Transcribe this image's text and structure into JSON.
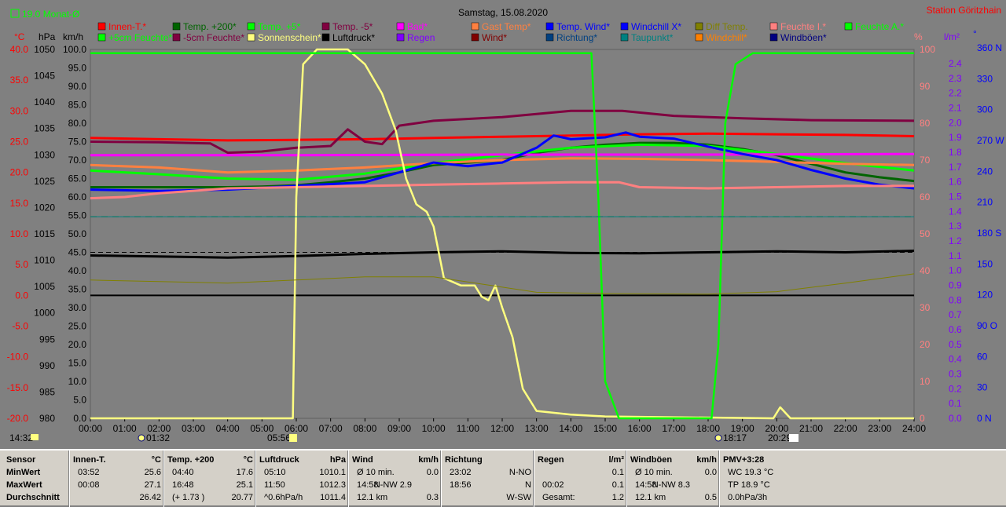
{
  "header": {
    "title": "Samstag, 15.08.2020",
    "station": "Station Göritzhain",
    "month_avg": "19.0 Monat-Ø"
  },
  "legend_rows": [
    [
      {
        "label": "Innen-T.*",
        "color": "#ff0000"
      },
      {
        "label": "Temp. +200*",
        "color": "#006400"
      },
      {
        "label": "Temp. +5*",
        "color": "#00ff00"
      },
      {
        "label": "Temp. -5*",
        "color": "#800040"
      },
      {
        "label": "Bad*",
        "color": "#ff00ff"
      },
      {
        "label": "Gast Temp*",
        "color": "#ff8040"
      },
      {
        "label": "Temp. Wind*",
        "color": "#0000ff"
      },
      {
        "label": "Windchill X*",
        "color": "#0000ff"
      },
      {
        "label": "Diff Temp.",
        "color": "#808000"
      },
      {
        "label": "Feuchte I.*",
        "color": "#ff8080"
      },
      {
        "label": "Feuchte A.*",
        "color": "#00ff00"
      }
    ],
    [
      {
        "label": "+5cm Feuchte*",
        "color": "#00ff00"
      },
      {
        "label": "-5cm Feuchte*",
        "color": "#800040"
      },
      {
        "label": "Sonnenschein*",
        "color": "#ffff80"
      },
      {
        "label": "Luftdruck*",
        "color": "#000000"
      },
      {
        "label": "Regen",
        "color": "#8000ff"
      },
      {
        "label": "Wind*",
        "color": "#800000"
      },
      {
        "label": "Richtung*",
        "color": "#004080"
      },
      {
        "label": "Taupunkt*",
        "color": "#008080"
      },
      {
        "label": "Windchill*",
        "color": "#ff8000"
      },
      {
        "label": "Windböen*",
        "color": "#000080"
      }
    ]
  ],
  "axis_units": {
    "temp": "°C",
    "pressure": "hPa",
    "wind": "km/h",
    "humidity": "%",
    "radiation": "l/m²",
    "direction": "°"
  },
  "axes": {
    "temp_ticks": [
      "40.0",
      "35.0",
      "30.0",
      "25.0",
      "20.0",
      "15.0",
      "10.0",
      "5.0",
      "0.0",
      "-5.0",
      "-10.0",
      "-15.0",
      "-20.0"
    ],
    "pressure_ticks": [
      "1050",
      "1045",
      "1040",
      "1035",
      "1030",
      "1025",
      "1020",
      "1015",
      "1010",
      "1005",
      "1000",
      "995",
      "990",
      "985",
      "980"
    ],
    "wind_ticks": [
      "100.0",
      "95.0",
      "90.0",
      "85.0",
      "80.0",
      "75.0",
      "70.0",
      "65.0",
      "60.0",
      "55.0",
      "50.0",
      "45.0",
      "40.0",
      "35.0",
      "30.0",
      "25.0",
      "20.0",
      "15.0",
      "10.0",
      "5.0",
      "0.0"
    ],
    "humidity_ticks": [
      "100",
      "90",
      "80",
      "70",
      "60",
      "50",
      "40",
      "30",
      "20",
      "10",
      "0"
    ],
    "rain_ticks": [
      "2.4",
      "2.3",
      "2.2",
      "2.1",
      "2.0",
      "1.9",
      "1.8",
      "1.7",
      "1.6",
      "1.5",
      "1.4",
      "1.3",
      "1.2",
      "1.1",
      "1.0",
      "0.9",
      "0.8",
      "0.7",
      "0.6",
      "0.5",
      "0.4",
      "0.3",
      "0.2",
      "0.1",
      "0.0"
    ],
    "dir_ticks": [
      "360 N",
      "330",
      "300",
      "270 W",
      "240",
      "210",
      "180 S",
      "150",
      "120",
      "90 O",
      "60",
      "30",
      "0 N"
    ],
    "time_ticks": [
      "00:00",
      "01:00",
      "02:00",
      "03:00",
      "04:00",
      "05:00",
      "06:00",
      "07:00",
      "08:00",
      "09:00",
      "10:00",
      "11:00",
      "12:00",
      "13:00",
      "14:00",
      "15:00",
      "16:00",
      "17:00",
      "18:00",
      "19:00",
      "20:00",
      "21:00",
      "22:00",
      "23:00",
      "24:00"
    ]
  },
  "markers": {
    "time_now": "14:32",
    "moonrise": "01:32",
    "sunrise": "05:56",
    "moonset": "18:17",
    "sunset": "20:29"
  },
  "chart_data": {
    "type": "line",
    "title": "Samstag, 15.08.2020",
    "x_unit": "hour",
    "xlim": [
      0,
      24
    ],
    "series": [
      {
        "name": "Innen-T.*",
        "axis": "temp",
        "color": "#ff0000",
        "points": [
          [
            0,
            25.6
          ],
          [
            2,
            25.4
          ],
          [
            4,
            25.2
          ],
          [
            6,
            25.3
          ],
          [
            8,
            25.4
          ],
          [
            10,
            25.6
          ],
          [
            12,
            25.8
          ],
          [
            14,
            26.0
          ],
          [
            16,
            26.2
          ],
          [
            18,
            26.3
          ],
          [
            20,
            26.2
          ],
          [
            22,
            26.1
          ],
          [
            24,
            25.9
          ]
        ]
      },
      {
        "name": "Temp. +200*",
        "axis": "temp",
        "color": "#006400",
        "points": [
          [
            0,
            17.6
          ],
          [
            2,
            17.6
          ],
          [
            4,
            17.6
          ],
          [
            5,
            17.7
          ],
          [
            6,
            17.9
          ],
          [
            7,
            18.4
          ],
          [
            8,
            19.0
          ],
          [
            9,
            20.0
          ],
          [
            10,
            21.2
          ],
          [
            11,
            21.6
          ],
          [
            12,
            22.0
          ],
          [
            13,
            23.2
          ],
          [
            14,
            24.0
          ],
          [
            15,
            24.5
          ],
          [
            16,
            24.8
          ],
          [
            17,
            24.8
          ],
          [
            18,
            24.5
          ],
          [
            19,
            23.8
          ],
          [
            20,
            22.8
          ],
          [
            21,
            21.4
          ],
          [
            22,
            20.0
          ],
          [
            23,
            19.2
          ],
          [
            24,
            18.6
          ]
        ]
      },
      {
        "name": "Temp. +5*",
        "axis": "temp",
        "color": "#00ff00",
        "points": [
          [
            0,
            20.3
          ],
          [
            2,
            19.7
          ],
          [
            4,
            19.0
          ],
          [
            6,
            18.8
          ],
          [
            8,
            19.8
          ],
          [
            10,
            21.5
          ],
          [
            12,
            22.8
          ],
          [
            14,
            24.0
          ],
          [
            16,
            24.5
          ],
          [
            18,
            24.3
          ],
          [
            20,
            23.0
          ],
          [
            22,
            21.5
          ],
          [
            24,
            20.3
          ]
        ]
      },
      {
        "name": "Temp. -5*",
        "axis": "temp",
        "color": "#800040",
        "points": [
          [
            0,
            25.0
          ],
          [
            2,
            24.9
          ],
          [
            3.5,
            24.7
          ],
          [
            4,
            23.2
          ],
          [
            5,
            23.4
          ],
          [
            6,
            24.0
          ],
          [
            7,
            24.3
          ],
          [
            7.5,
            27.0
          ],
          [
            8,
            25.0
          ],
          [
            8.5,
            24.6
          ],
          [
            9,
            27.6
          ],
          [
            10,
            28.4
          ],
          [
            12,
            29.0
          ],
          [
            14,
            30.0
          ],
          [
            15.5,
            30.0
          ],
          [
            17,
            29.2
          ],
          [
            19,
            28.8
          ],
          [
            21,
            28.5
          ],
          [
            24,
            28.4
          ]
        ]
      },
      {
        "name": "Bad*",
        "axis": "temp",
        "color": "#ff00ff",
        "points": [
          [
            0,
            22.8
          ],
          [
            6,
            22.8
          ],
          [
            12,
            22.9
          ],
          [
            18,
            22.9
          ],
          [
            24,
            23.0
          ]
        ]
      },
      {
        "name": "Gast Temp*",
        "axis": "temp",
        "color": "#ff8040",
        "points": [
          [
            0,
            21.2
          ],
          [
            2,
            20.8
          ],
          [
            4,
            20.0
          ],
          [
            6,
            20.3
          ],
          [
            8,
            20.8
          ],
          [
            10,
            21.5
          ],
          [
            12,
            22.0
          ],
          [
            14,
            22.3
          ],
          [
            16,
            22.2
          ],
          [
            18,
            22.0
          ],
          [
            20,
            21.7
          ],
          [
            22,
            21.4
          ],
          [
            24,
            21.2
          ]
        ]
      },
      {
        "name": "Temp. Wind*",
        "axis": "temp",
        "color": "#0000ff",
        "points": [
          [
            0,
            17.2
          ],
          [
            2,
            17.0
          ],
          [
            4,
            17.2
          ],
          [
            6,
            17.8
          ],
          [
            8,
            18.4
          ],
          [
            9,
            20.0
          ],
          [
            10,
            21.6
          ],
          [
            11,
            21.0
          ],
          [
            12,
            21.6
          ],
          [
            13,
            24.0
          ],
          [
            13.5,
            26.0
          ],
          [
            14,
            25.4
          ],
          [
            15,
            25.7
          ],
          [
            15.6,
            26.5
          ],
          [
            16,
            25.8
          ],
          [
            17,
            25.5
          ],
          [
            18,
            24.2
          ],
          [
            19,
            23.0
          ],
          [
            20,
            22.0
          ],
          [
            21,
            20.4
          ],
          [
            22,
            19.0
          ],
          [
            23,
            18.0
          ],
          [
            24,
            17.4
          ]
        ]
      },
      {
        "name": "Feuchte I.*",
        "axis": "temp",
        "color": "#ff8080",
        "points": [
          [
            0,
            15.8
          ],
          [
            1,
            16.0
          ],
          [
            2,
            16.6
          ],
          [
            4,
            17.4
          ],
          [
            6,
            17.6
          ],
          [
            8,
            17.8
          ],
          [
            10,
            18.0
          ],
          [
            12,
            18.2
          ],
          [
            14,
            18.4
          ],
          [
            15.4,
            18.4
          ],
          [
            16,
            17.6
          ],
          [
            18,
            17.4
          ],
          [
            20,
            17.6
          ],
          [
            22,
            17.8
          ],
          [
            24,
            17.8
          ]
        ]
      },
      {
        "name": "Luftdruck*",
        "axis": "pressure",
        "color": "#000000",
        "points": [
          [
            0,
            1010.9
          ],
          [
            4,
            1010.5
          ],
          [
            6,
            1010.8
          ],
          [
            8,
            1011.2
          ],
          [
            10,
            1011.5
          ],
          [
            12,
            1011.7
          ],
          [
            14,
            1011.4
          ],
          [
            16,
            1011.3
          ],
          [
            18,
            1011.5
          ],
          [
            20,
            1011.7
          ],
          [
            22,
            1011.5
          ],
          [
            24,
            1011.8
          ]
        ]
      },
      {
        "name": "Sonnenschein*",
        "axis": "wind",
        "color": "#ffff80",
        "points": [
          [
            0,
            0
          ],
          [
            5.9,
            0
          ],
          [
            6,
            60
          ],
          [
            6.2,
            96
          ],
          [
            6.6,
            100
          ],
          [
            7.5,
            100
          ],
          [
            8,
            96
          ],
          [
            8.5,
            88
          ],
          [
            8.9,
            78
          ],
          [
            9.2,
            65
          ],
          [
            9.5,
            58
          ],
          [
            9.8,
            56
          ],
          [
            10,
            52
          ],
          [
            10.3,
            38
          ],
          [
            10.8,
            36
          ],
          [
            11.2,
            36
          ],
          [
            11.4,
            33
          ],
          [
            11.6,
            32
          ],
          [
            11.8,
            36
          ],
          [
            12.0,
            30
          ],
          [
            12.3,
            22
          ],
          [
            12.6,
            8
          ],
          [
            13,
            2
          ],
          [
            14,
            1
          ],
          [
            15,
            0.5
          ],
          [
            19.9,
            0
          ],
          [
            20.1,
            3
          ],
          [
            20.4,
            0
          ],
          [
            24,
            0
          ]
        ]
      },
      {
        "name": "Feuchte A.*",
        "axis": "humidity",
        "color": "#00ff00",
        "points": [
          [
            0,
            99
          ],
          [
            14.6,
            99
          ],
          [
            14.8,
            60
          ],
          [
            15.0,
            10
          ],
          [
            15.4,
            0
          ],
          [
            18.1,
            0
          ],
          [
            18.3,
            20
          ],
          [
            18.5,
            80
          ],
          [
            18.8,
            96
          ],
          [
            19.3,
            99
          ],
          [
            24,
            99
          ]
        ]
      },
      {
        "name": "Taupunkt*",
        "axis": "temp",
        "color": "#008080",
        "points": [
          [
            0,
            12.8
          ],
          [
            6,
            12.8
          ],
          [
            12,
            12.8
          ],
          [
            18,
            12.8
          ],
          [
            24,
            12.8
          ]
        ]
      },
      {
        "name": "Diff Temp.",
        "axis": "temp",
        "color": "#808000",
        "points": [
          [
            0,
            2.5
          ],
          [
            4,
            2.0
          ],
          [
            8,
            3.0
          ],
          [
            10,
            3.0
          ],
          [
            13,
            0.5
          ],
          [
            15,
            0.3
          ],
          [
            18,
            0.2
          ],
          [
            20,
            0.6
          ],
          [
            22,
            2.0
          ],
          [
            24,
            3.5
          ]
        ]
      }
    ]
  },
  "stats": {
    "columns": [
      {
        "title": "Sensor",
        "unit": "",
        "rows": [
          [
            "MinWert",
            "",
            ""
          ],
          [
            "MaxWert",
            "",
            ""
          ],
          [
            "Durchschnitt",
            "",
            ""
          ]
        ]
      },
      {
        "title": "Innen-T.",
        "unit": "°C",
        "rows": [
          [
            "03:52",
            "",
            "25.6"
          ],
          [
            "00:08",
            "",
            "27.1"
          ],
          [
            "",
            "",
            "26.42"
          ]
        ]
      },
      {
        "title": "Temp. +200",
        "unit": "°C",
        "rows": [
          [
            "04:40",
            "",
            "17.6"
          ],
          [
            "16:48",
            "",
            "25.1"
          ],
          [
            "(+ 1.73 )",
            "",
            "20.77"
          ]
        ]
      },
      {
        "title": "Luftdruck",
        "unit": "hPa",
        "rows": [
          [
            "05:10",
            "",
            "1010.1"
          ],
          [
            "11:50",
            "",
            "1012.3"
          ],
          [
            "^0.6hPa/h",
            "",
            "1011.4"
          ]
        ]
      },
      {
        "title": "Wind",
        "unit": "km/h",
        "rows": [
          [
            "Ø 10 min.",
            "",
            "0.0"
          ],
          [
            "14:58",
            "N-NW 2.9",
            ""
          ],
          [
            "12.1 km",
            "",
            "0.3"
          ]
        ]
      },
      {
        "title": "Richtung",
        "unit": "",
        "rows": [
          [
            "23:02",
            "",
            "N-NO"
          ],
          [
            "18:56",
            "",
            "N"
          ],
          [
            "",
            "",
            "W-SW"
          ]
        ]
      },
      {
        "title": "Regen",
        "unit": "l/m²",
        "rows": [
          [
            "",
            "",
            "0.1"
          ],
          [
            "00:02",
            "",
            "0.1"
          ],
          [
            "Gesamt:",
            "",
            "1.2"
          ]
        ]
      },
      {
        "title": "Windböen",
        "unit": "km/h",
        "rows": [
          [
            "Ø 10 min.",
            "",
            "0.0"
          ],
          [
            "14:58",
            "N-NW 8.3",
            ""
          ],
          [
            "12.1 km",
            "",
            "0.5"
          ]
        ]
      },
      {
        "title": "PMV+3:28",
        "unit": "",
        "rows": [
          [
            "WC 19.3 °C",
            "",
            ""
          ],
          [
            "TP 18.9 °C",
            "",
            ""
          ],
          [
            "0.0hPa/3h",
            "",
            ""
          ]
        ]
      }
    ]
  }
}
